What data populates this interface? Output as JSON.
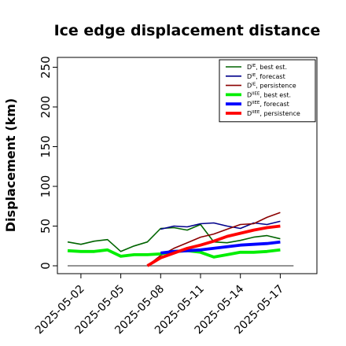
{
  "chart_data": {
    "type": "line",
    "title": "Ice edge displacement distance",
    "ylabel": "Displacement (km)",
    "xlabel": "",
    "ylim": [
      0,
      255
    ],
    "yticks": [
      0,
      50,
      100,
      150,
      200,
      250
    ],
    "x": [
      "2025-05-01",
      "2025-05-02",
      "2025-05-03",
      "2025-05-04",
      "2025-05-05",
      "2025-05-06",
      "2025-05-07",
      "2025-05-08",
      "2025-05-09",
      "2025-05-10",
      "2025-05-11",
      "2025-05-12",
      "2025-05-13",
      "2025-05-14",
      "2025-05-15",
      "2025-05-16",
      "2025-05-17",
      "2025-05-18"
    ],
    "xticks": [
      "2025-05-02",
      "2025-05-05",
      "2025-05-08",
      "2025-05-11",
      "2025-05-14",
      "2025-05-17"
    ],
    "highlight_tick": "2025-05-08",
    "highlight_color": "#228b22",
    "baseline": 0,
    "legend_position": "top-right",
    "grid": false,
    "series": [
      {
        "name": "D^IE, best est.",
        "label_base": "D",
        "label_sup": "IE",
        "label_tail": ", best est.",
        "color": "#006400",
        "width": 1.6,
        "values": [
          30,
          27,
          31,
          33,
          18,
          25,
          30,
          47,
          48,
          45,
          52,
          30,
          29,
          32,
          36,
          38,
          34,
          null
        ]
      },
      {
        "name": "D^IE, forecast",
        "label_base": "D",
        "label_sup": "IE",
        "label_tail": ", forecast",
        "color": "#00008b",
        "width": 1.6,
        "values": [
          null,
          null,
          null,
          null,
          null,
          null,
          null,
          46,
          50,
          49,
          53,
          54,
          50,
          47,
          54,
          52,
          56,
          null
        ]
      },
      {
        "name": "D^IE, persistence",
        "label_base": "D",
        "label_sup": "IE",
        "label_tail": ", persistence",
        "color": "#8b0000",
        "width": 1.6,
        "values": [
          null,
          null,
          null,
          null,
          null,
          null,
          0,
          13,
          22,
          29,
          36,
          40,
          46,
          52,
          53,
          61,
          67,
          null
        ]
      },
      {
        "name": "D^IIEE, best est.",
        "label_base": "D",
        "label_sup": "IIEE",
        "label_tail": ", best est.",
        "color": "#00ee00",
        "width": 3.8,
        "values": [
          19,
          18,
          18,
          20,
          12,
          14,
          14,
          15,
          18,
          19,
          17,
          11,
          14,
          17,
          17,
          18,
          20,
          null
        ]
      },
      {
        "name": "D^IIEE, forecast",
        "label_base": "D",
        "label_sup": "IIEE",
        "label_tail": ", forecast",
        "color": "#0000ff",
        "width": 3.8,
        "values": [
          null,
          null,
          null,
          null,
          null,
          null,
          null,
          16,
          18,
          19,
          20,
          22,
          24,
          26,
          27,
          28,
          30,
          null
        ]
      },
      {
        "name": "D^IIEE, persistence",
        "label_base": "D",
        "label_sup": "IIEE",
        "label_tail": ", persistence",
        "color": "#ff0000",
        "width": 3.8,
        "values": [
          null,
          null,
          null,
          null,
          null,
          null,
          0,
          10,
          16,
          22,
          26,
          31,
          37,
          41,
          45,
          48,
          50,
          null
        ]
      }
    ]
  }
}
